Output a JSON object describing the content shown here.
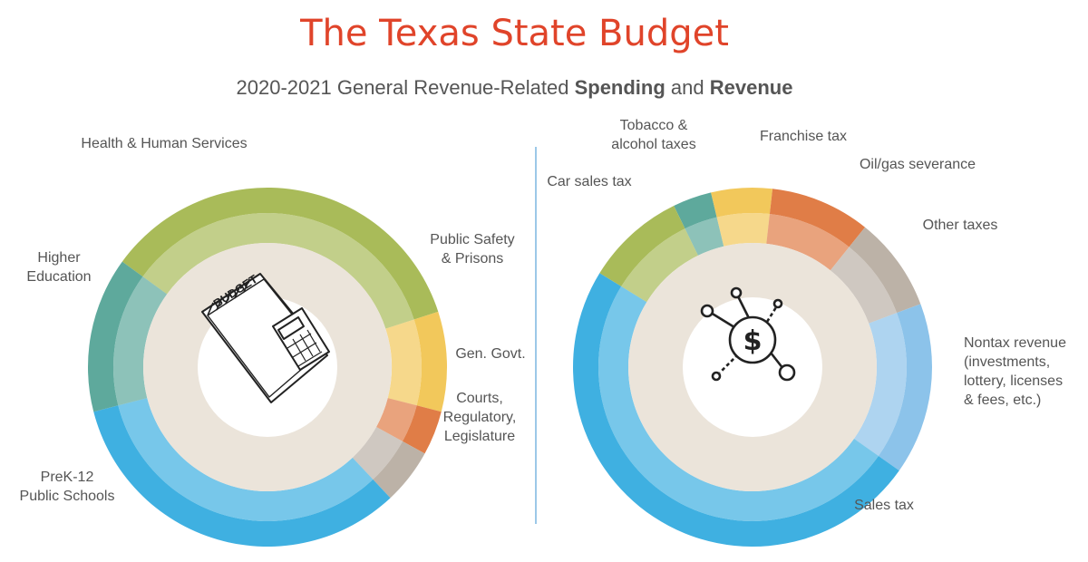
{
  "title": "The Texas State Budget",
  "subtitle": {
    "prefix": "2020-2021 General Revenue-Related ",
    "bold1": "Spending",
    "middle": " and ",
    "bold2": "Revenue"
  },
  "chart_data": [
    {
      "type": "pie",
      "name": "Spending",
      "donut": true,
      "icon": "budget-calculator-icon",
      "slices": [
        {
          "label": [
            "Health & Human Services"
          ],
          "value": 35,
          "color": "#a9bb59"
        },
        {
          "label": [
            "Public Safety",
            "& Prisons"
          ],
          "value": 9,
          "color": "#f2c85b"
        },
        {
          "label": [
            "Gen. Govt."
          ],
          "value": 4,
          "color": "#e07d47"
        },
        {
          "label": [
            "Courts,",
            "Regulatory,",
            "Legislature"
          ],
          "value": 5,
          "color": "#bcb2a7"
        },
        {
          "label": [
            "PreK-12",
            "Public Schools"
          ],
          "value": 33,
          "color": "#3fb0e1"
        },
        {
          "label": [
            "Higher",
            "Education"
          ],
          "value": 14,
          "color": "#5ea99c"
        }
      ]
    },
    {
      "type": "pie",
      "name": "Revenue",
      "donut": true,
      "icon": "dollar-network-icon",
      "slices": [
        {
          "label": [
            "Tobacco &",
            "alcohol taxes"
          ],
          "value": 3.5,
          "color": "#5ea99c"
        },
        {
          "label": [
            "Franchise tax"
          ],
          "value": 5.5,
          "color": "#f2c85b"
        },
        {
          "label": [
            "Oil/gas severance"
          ],
          "value": 9,
          "color": "#e07d47"
        },
        {
          "label": [
            "Other taxes"
          ],
          "value": 8.5,
          "color": "#bcb2a7"
        },
        {
          "label": [
            "Nontax revenue",
            "(investments,",
            "lottery, licenses",
            "& fees, etc.)"
          ],
          "value": 15.5,
          "color": "#8cc3ea"
        },
        {
          "label": [
            "Sales tax"
          ],
          "value": 49,
          "color": "#3fb0e1"
        },
        {
          "label": [
            "Car sales tax"
          ],
          "value": 9,
          "color": "#a9bb59"
        }
      ]
    }
  ]
}
